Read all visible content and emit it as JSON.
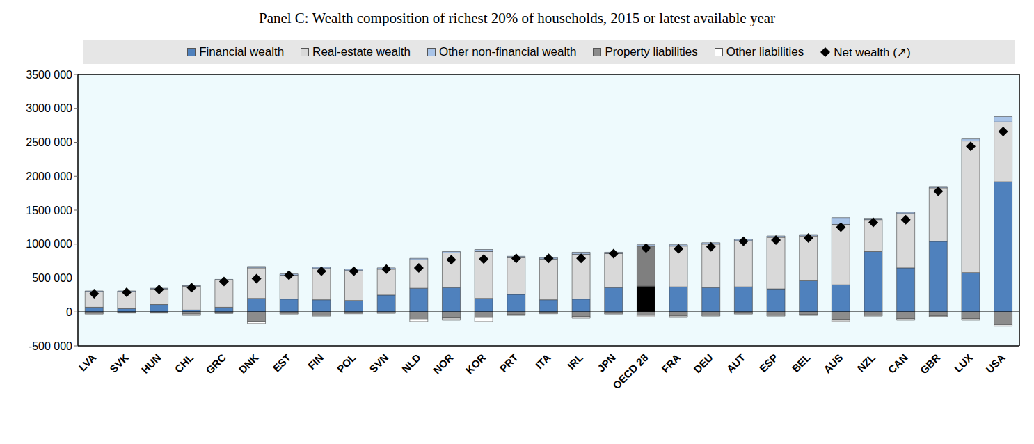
{
  "chart_data": {
    "type": "bar",
    "title": "Panel C: Wealth composition of richest 20% of households, 2015 or latest available year",
    "categories": [
      "LVA",
      "SVK",
      "HUN",
      "CHL",
      "GRC",
      "DNK",
      "EST",
      "FIN",
      "POL",
      "SVN",
      "NLD",
      "NOR",
      "KOR",
      "PRT",
      "ITA",
      "IRL",
      "JPN",
      "OECD 28",
      "FRA",
      "DEU",
      "AUT",
      "ESP",
      "BEL",
      "AUS",
      "NZL",
      "CAN",
      "GBR",
      "LUX",
      "USA"
    ],
    "series": [
      {
        "name": "Financial wealth",
        "color": "#4f81bd",
        "colors": [
          "#4f81bd",
          "#4f81bd",
          "#4f81bd",
          "#4f81bd",
          "#4f81bd",
          "#4f81bd",
          "#4f81bd",
          "#4f81bd",
          "#4f81bd",
          "#4f81bd",
          "#4f81bd",
          "#4f81bd",
          "#4f81bd",
          "#4f81bd",
          "#4f81bd",
          "#4f81bd",
          "#4f81bd",
          "#000000",
          "#4f81bd",
          "#4f81bd",
          "#4f81bd",
          "#4f81bd",
          "#4f81bd",
          "#4f81bd",
          "#4f81bd",
          "#4f81bd",
          "#4f81bd",
          "#4f81bd",
          "#4f81bd"
        ],
        "values": [
          70000,
          50000,
          110000,
          30000,
          70000,
          200000,
          190000,
          180000,
          170000,
          250000,
          350000,
          360000,
          200000,
          260000,
          180000,
          190000,
          360000,
          380000,
          370000,
          360000,
          370000,
          340000,
          460000,
          400000,
          890000,
          650000,
          1040000,
          580000,
          1920000
        ]
      },
      {
        "name": "Real-estate wealth",
        "color": "#d9d9d9",
        "colors": [
          "#d9d9d9",
          "#d9d9d9",
          "#d9d9d9",
          "#d9d9d9",
          "#d9d9d9",
          "#d9d9d9",
          "#d9d9d9",
          "#d9d9d9",
          "#d9d9d9",
          "#d9d9d9",
          "#d9d9d9",
          "#d9d9d9",
          "#d9d9d9",
          "#d9d9d9",
          "#d9d9d9",
          "#d9d9d9",
          "#d9d9d9",
          "#7f7f7f",
          "#d9d9d9",
          "#d9d9d9",
          "#d9d9d9",
          "#d9d9d9",
          "#d9d9d9",
          "#d9d9d9",
          "#d9d9d9",
          "#d9d9d9",
          "#d9d9d9",
          "#d9d9d9",
          "#d9d9d9"
        ],
        "values": [
          230000,
          250000,
          230000,
          350000,
          400000,
          450000,
          350000,
          460000,
          440000,
          380000,
          420000,
          510000,
          690000,
          540000,
          600000,
          660000,
          500000,
          590000,
          600000,
          640000,
          680000,
          760000,
          660000,
          890000,
          470000,
          800000,
          790000,
          1940000,
          880000
        ]
      },
      {
        "name": "Other non-financial wealth",
        "color": "#a9c4e8",
        "values": [
          10000,
          10000,
          10000,
          10000,
          10000,
          20000,
          20000,
          20000,
          20000,
          20000,
          20000,
          20000,
          30000,
          20000,
          20000,
          30000,
          20000,
          20000,
          20000,
          20000,
          20000,
          20000,
          20000,
          100000,
          20000,
          20000,
          20000,
          30000,
          80000
        ]
      },
      {
        "name": "Property liabilities",
        "color": "#8c8c8c",
        "values": [
          -20000,
          -10000,
          -10000,
          -30000,
          -15000,
          -140000,
          -20000,
          -50000,
          -15000,
          -10000,
          -110000,
          -90000,
          -80000,
          -40000,
          -15000,
          -70000,
          -20000,
          -50000,
          -60000,
          -50000,
          -20000,
          -50000,
          -40000,
          -120000,
          -50000,
          -100000,
          -60000,
          -100000,
          -190000
        ]
      },
      {
        "name": "Other liabilities",
        "color": "#ffffff",
        "values": [
          -10000,
          -5000,
          -5000,
          -20000,
          -5000,
          -30000,
          -10000,
          -10000,
          -10000,
          -10000,
          -30000,
          -30000,
          -60000,
          -10000,
          -10000,
          -20000,
          -10000,
          -20000,
          -20000,
          -10000,
          -10000,
          -10000,
          -10000,
          -20000,
          -10000,
          -20000,
          -10000,
          -20000,
          -20000
        ]
      },
      {
        "name": "Net wealth (↗)",
        "type": "scatter",
        "marker": "diamond",
        "color": "#000000",
        "values": [
          270000,
          290000,
          330000,
          360000,
          450000,
          490000,
          540000,
          600000,
          600000,
          630000,
          650000,
          770000,
          780000,
          790000,
          790000,
          790000,
          860000,
          940000,
          930000,
          960000,
          1040000,
          1060000,
          1090000,
          1250000,
          1320000,
          1360000,
          1780000,
          2440000,
          2660000
        ]
      }
    ],
    "ylim": [
      -500000,
      3500000
    ],
    "yticks": [
      {
        "value": -500000,
        "label": "-500 000"
      },
      0,
      {
        "value": 500000,
        "label": "500 000"
      },
      {
        "value": 1000000,
        "label": "1000 000"
      },
      {
        "value": 1500000,
        "label": "1500 000"
      },
      {
        "value": 2000000,
        "label": "2000 000"
      },
      {
        "value": 2500000,
        "label": "2500 000"
      },
      {
        "value": 3000000,
        "label": "3000 000"
      },
      {
        "value": 3500000,
        "label": "3500 000"
      }
    ],
    "stacked": true,
    "grid": false,
    "legend": "top"
  }
}
